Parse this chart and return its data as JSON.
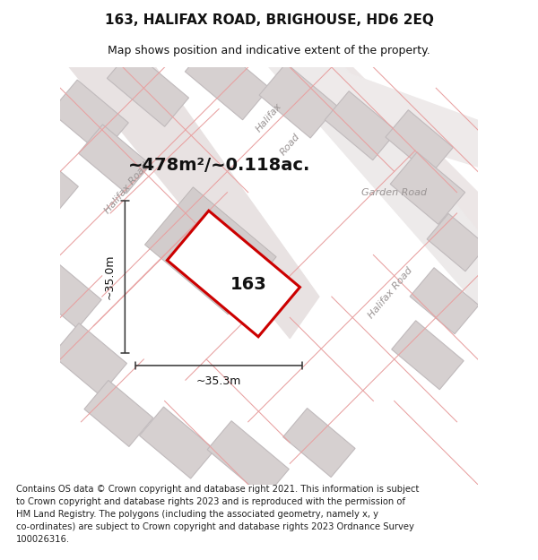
{
  "title": "163, HALIFAX ROAD, BRIGHOUSE, HD6 2EQ",
  "subtitle": "Map shows position and indicative extent of the property.",
  "area_label": "~478m²/~0.118ac.",
  "property_number": "163",
  "dim_height": "~35.0m",
  "dim_width": "~35.3m",
  "footer": "Contains OS data © Crown copyright and database right 2021. This information is subject\nto Crown copyright and database rights 2023 and is reproduced with the permission of\nHM Land Registry. The polygons (including the associated geometry, namely x, y\nco-ordinates) are subject to Crown copyright and database rights 2023 Ordnance Survey\n100026316.",
  "map_bg": "#f8f4f4",
  "road_color": "#e8e2e2",
  "block_fill": "#d6d0d0",
  "block_edge": "#c0babc",
  "red_prop": "#cc0000",
  "red_thin": "#e8a0a0",
  "dim_color": "#333333",
  "road_label_color": "#9a9494",
  "title_fontsize": 11,
  "subtitle_fontsize": 9,
  "area_fontsize": 14,
  "prop_num_fontsize": 14,
  "dim_fontsize": 9,
  "road_label_fontsize": 8,
  "footer_fontsize": 7.2
}
